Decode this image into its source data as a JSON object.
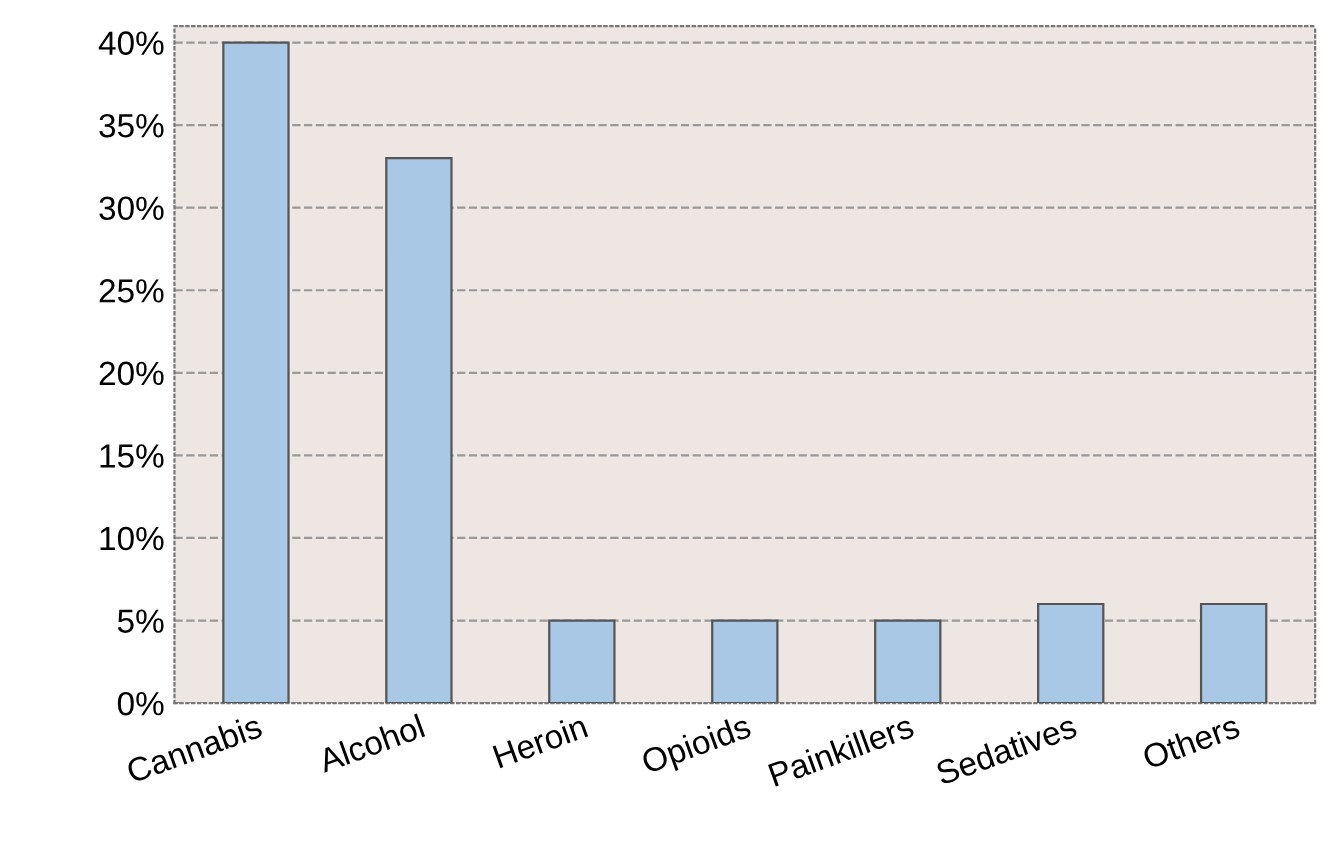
{
  "chart_data": {
    "type": "bar",
    "categories": [
      "Cannabis",
      "Alcohol",
      "Heroin",
      "Opioids",
      "Painkillers",
      "Sedatives",
      "Others"
    ],
    "values": [
      40,
      33,
      5,
      5,
      5,
      6,
      6
    ],
    "color": "#a8c8e6",
    "ylim": [
      0,
      41
    ],
    "yticks": [
      {
        "value": 0,
        "label": "0%"
      },
      {
        "value": 5,
        "label": "5%"
      },
      {
        "value": 10,
        "label": "10%"
      },
      {
        "value": 15,
        "label": "15%"
      },
      {
        "value": 20,
        "label": "20%"
      },
      {
        "value": 25,
        "label": "25%"
      },
      {
        "value": 30,
        "label": "30%"
      },
      {
        "value": 35,
        "label": "35%"
      },
      {
        "value": 40,
        "label": "40%"
      }
    ],
    "grid": "y"
  }
}
